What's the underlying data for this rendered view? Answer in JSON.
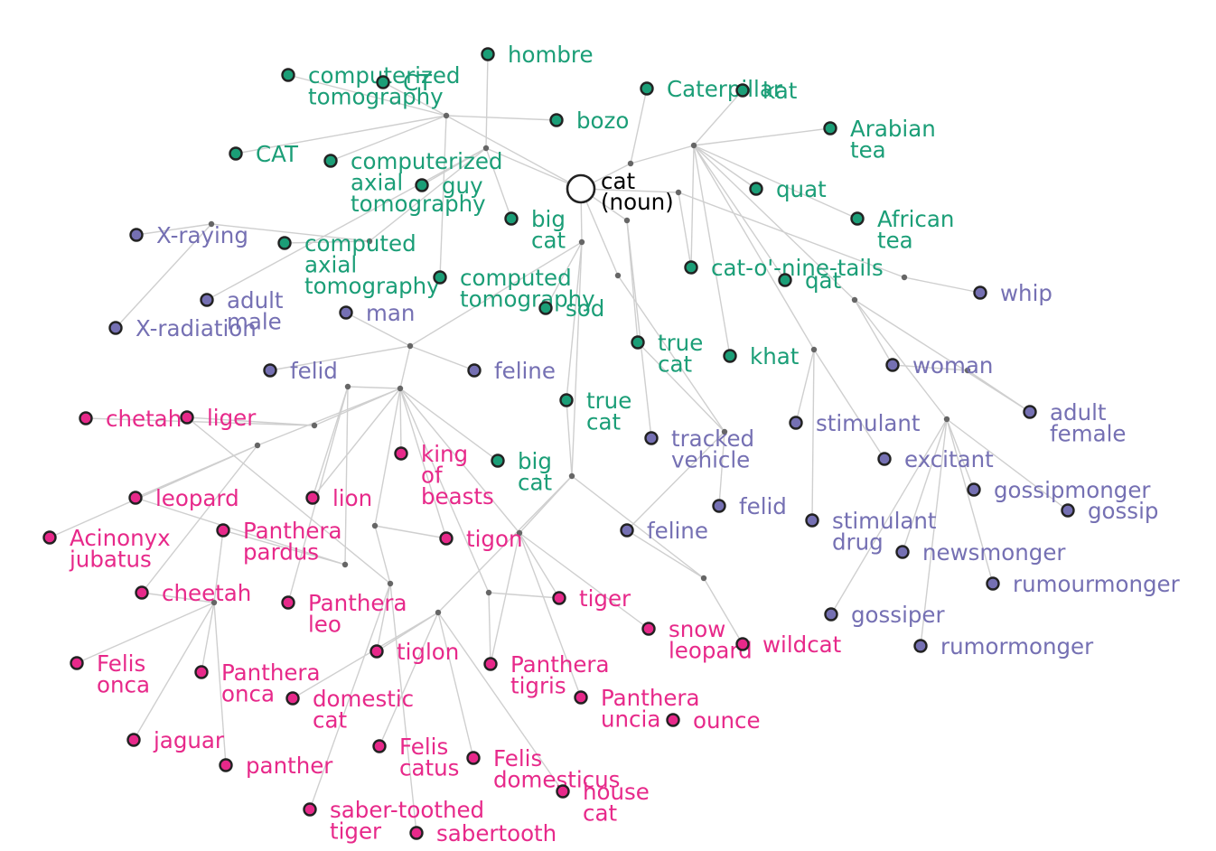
{
  "title": "cat (noun)",
  "colors": {
    "root": "#000000",
    "green": "#1b9e77",
    "purple": "#7570b3",
    "magenta": "#e7298a",
    "edge": "#cfcfcf",
    "junction": "#666666"
  },
  "root": {
    "label": [
      "cat",
      "(noun)"
    ]
  },
  "nodes": [
    {
      "id": "hombre",
      "label": [
        "hombre"
      ],
      "group": "green"
    },
    {
      "id": "computerized-tomography",
      "label": [
        "computerized",
        "tomography"
      ],
      "group": "green"
    },
    {
      "id": "ct",
      "label": [
        "CT"
      ],
      "group": "green"
    },
    {
      "id": "caterpillar",
      "label": [
        "Caterpillar"
      ],
      "group": "green"
    },
    {
      "id": "kat",
      "label": [
        "kat"
      ],
      "group": "green"
    },
    {
      "id": "bozo",
      "label": [
        "bozo"
      ],
      "group": "green"
    },
    {
      "id": "arabian-tea",
      "label": [
        "Arabian",
        "tea"
      ],
      "group": "green"
    },
    {
      "id": "cat-upper",
      "label": [
        "CAT"
      ],
      "group": "green"
    },
    {
      "id": "computerized-axial-tomography",
      "label": [
        "computerized",
        "axial",
        "tomography"
      ],
      "group": "green"
    },
    {
      "id": "guy",
      "label": [
        "guy"
      ],
      "group": "green"
    },
    {
      "id": "quat",
      "label": [
        "quat"
      ],
      "group": "green"
    },
    {
      "id": "big-cat-1",
      "label": [
        "big",
        "cat"
      ],
      "group": "green"
    },
    {
      "id": "african-tea",
      "label": [
        "African",
        "tea"
      ],
      "group": "green"
    },
    {
      "id": "x-raying",
      "label": [
        "X-raying"
      ],
      "group": "purple"
    },
    {
      "id": "computed-axial-tomography",
      "label": [
        "computed",
        "axial",
        "tomography"
      ],
      "group": "green"
    },
    {
      "id": "computed-tomography",
      "label": [
        "computed",
        "tomography"
      ],
      "group": "green"
    },
    {
      "id": "cat-o-nine-tails",
      "label": [
        "cat-o'-nine-tails"
      ],
      "group": "green"
    },
    {
      "id": "qat",
      "label": [
        "qat"
      ],
      "group": "green"
    },
    {
      "id": "whip",
      "label": [
        "whip"
      ],
      "group": "purple"
    },
    {
      "id": "adult-male",
      "label": [
        "adult",
        "male"
      ],
      "group": "purple"
    },
    {
      "id": "man",
      "label": [
        "man"
      ],
      "group": "purple"
    },
    {
      "id": "sod",
      "label": [
        "sod"
      ],
      "group": "green"
    },
    {
      "id": "x-radiation",
      "label": [
        "X-radiation"
      ],
      "group": "purple"
    },
    {
      "id": "true-cat-1",
      "label": [
        "true",
        "cat"
      ],
      "group": "green"
    },
    {
      "id": "khat",
      "label": [
        "khat"
      ],
      "group": "green"
    },
    {
      "id": "woman",
      "label": [
        "woman"
      ],
      "group": "purple"
    },
    {
      "id": "felid-1",
      "label": [
        "felid"
      ],
      "group": "purple"
    },
    {
      "id": "feline-1",
      "label": [
        "feline"
      ],
      "group": "purple"
    },
    {
      "id": "true-cat-2",
      "label": [
        "true",
        "cat"
      ],
      "group": "green"
    },
    {
      "id": "adult-female",
      "label": [
        "adult",
        "female"
      ],
      "group": "purple"
    },
    {
      "id": "chetah",
      "label": [
        "chetah"
      ],
      "group": "magenta"
    },
    {
      "id": "liger",
      "label": [
        "liger"
      ],
      "group": "magenta"
    },
    {
      "id": "stimulant",
      "label": [
        "stimulant"
      ],
      "group": "purple"
    },
    {
      "id": "tracked-vehicle",
      "label": [
        "tracked",
        "vehicle"
      ],
      "group": "purple"
    },
    {
      "id": "king-of-beasts",
      "label": [
        "king",
        "of",
        "beasts"
      ],
      "group": "magenta"
    },
    {
      "id": "big-cat-2",
      "label": [
        "big",
        "cat"
      ],
      "group": "green"
    },
    {
      "id": "excitant",
      "label": [
        "excitant"
      ],
      "group": "purple"
    },
    {
      "id": "gossipmonger",
      "label": [
        "gossipmonger"
      ],
      "group": "purple"
    },
    {
      "id": "leopard",
      "label": [
        "leopard"
      ],
      "group": "magenta"
    },
    {
      "id": "lion",
      "label": [
        "lion"
      ],
      "group": "magenta"
    },
    {
      "id": "felid-2",
      "label": [
        "felid"
      ],
      "group": "purple"
    },
    {
      "id": "gossip",
      "label": [
        "gossip"
      ],
      "group": "purple"
    },
    {
      "id": "stimulant-drug",
      "label": [
        "stimulant",
        "drug"
      ],
      "group": "purple"
    },
    {
      "id": "acinonyx-jubatus",
      "label": [
        "Acinonyx",
        "jubatus"
      ],
      "group": "magenta"
    },
    {
      "id": "panthera-pardus",
      "label": [
        "Panthera",
        "pardus"
      ],
      "group": "magenta"
    },
    {
      "id": "tigon",
      "label": [
        "tigon"
      ],
      "group": "magenta"
    },
    {
      "id": "feline-2",
      "label": [
        "feline"
      ],
      "group": "purple"
    },
    {
      "id": "newsmonger",
      "label": [
        "newsmonger"
      ],
      "group": "purple"
    },
    {
      "id": "rumourmonger",
      "label": [
        "rumourmonger"
      ],
      "group": "purple"
    },
    {
      "id": "cheetah",
      "label": [
        "cheetah"
      ],
      "group": "magenta"
    },
    {
      "id": "panthera-leo",
      "label": [
        "Panthera",
        "leo"
      ],
      "group": "magenta"
    },
    {
      "id": "tiger",
      "label": [
        "tiger"
      ],
      "group": "magenta"
    },
    {
      "id": "gossiper",
      "label": [
        "gossiper"
      ],
      "group": "purple"
    },
    {
      "id": "snow-leopard",
      "label": [
        "snow",
        "leopard"
      ],
      "group": "magenta"
    },
    {
      "id": "wildcat",
      "label": [
        "wildcat"
      ],
      "group": "magenta"
    },
    {
      "id": "rumormonger",
      "label": [
        "rumormonger"
      ],
      "group": "purple"
    },
    {
      "id": "tiglon",
      "label": [
        "tiglon"
      ],
      "group": "magenta"
    },
    {
      "id": "felis-onca",
      "label": [
        "Felis",
        "onca"
      ],
      "group": "magenta"
    },
    {
      "id": "panthera-tigris",
      "label": [
        "Panthera",
        "tigris"
      ],
      "group": "magenta"
    },
    {
      "id": "panthera-onca",
      "label": [
        "Panthera",
        "onca"
      ],
      "group": "magenta"
    },
    {
      "id": "domestic-cat",
      "label": [
        "domestic",
        "cat"
      ],
      "group": "magenta"
    },
    {
      "id": "panthera-uncia",
      "label": [
        "Panthera",
        "uncia"
      ],
      "group": "magenta"
    },
    {
      "id": "ounce",
      "label": [
        "ounce"
      ],
      "group": "magenta"
    },
    {
      "id": "jaguar",
      "label": [
        "jaguar"
      ],
      "group": "magenta"
    },
    {
      "id": "felis-catus",
      "label": [
        "Felis",
        "catus"
      ],
      "group": "magenta"
    },
    {
      "id": "felis-domesticus",
      "label": [
        "Felis",
        "domesticus"
      ],
      "group": "magenta"
    },
    {
      "id": "panther",
      "label": [
        "panther"
      ],
      "group": "magenta"
    },
    {
      "id": "house-cat",
      "label": [
        "house",
        "cat"
      ],
      "group": "magenta"
    },
    {
      "id": "saber-toothed-tiger",
      "label": [
        "saber-toothed",
        "tiger"
      ],
      "group": "magenta"
    },
    {
      "id": "sabertooth",
      "label": [
        "sabertooth"
      ],
      "group": "magenta"
    }
  ]
}
